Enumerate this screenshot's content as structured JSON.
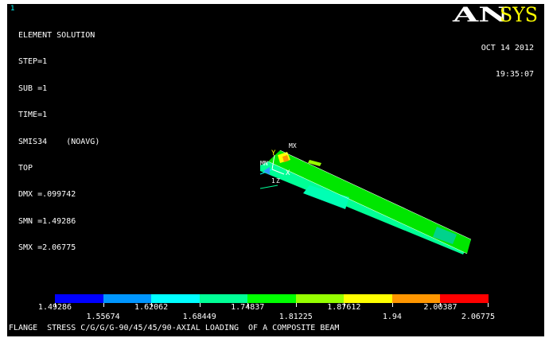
{
  "window_number": "1",
  "info": {
    "title": "ELEMENT SOLUTION",
    "lines": [
      "STEP=1",
      "SUB =1",
      "TIME=1",
      "SMIS34    (NOAVG)",
      "TOP",
      "DMX =.099742",
      "SMN =1.49286",
      "SMX =2.06775"
    ]
  },
  "date": "OCT 14 2012",
  "time": "19:35:07",
  "logo_text": "ANSYS",
  "triad": {
    "mx_label": "MX",
    "mn_label": "MN",
    "x_label": "X",
    "y_label": "Y",
    "z_label": "Z",
    "node_label": "1"
  },
  "legend": {
    "colors": [
      "#0000ff",
      "#0096ff",
      "#00ffff",
      "#00ff96",
      "#00ff00",
      "#96ff00",
      "#ffff00",
      "#ff9600",
      "#ff0000"
    ],
    "labels_top": [
      "1.49286",
      "1.62062",
      "1.74837",
      "1.87612",
      "2.00387"
    ],
    "labels_bottom": [
      "1.55674",
      "1.68449",
      "1.81225",
      "1.94",
      "2.06775"
    ]
  },
  "caption": "FLANGE  STRESS C/G/G/G-90/45/45/90-AXIAL LOADING  OF A COMPOSITE BEAM",
  "colors": {
    "background": "#000000",
    "text": "#ffffff",
    "window_number": "#00ffff",
    "beam_main": "#00ff00",
    "beam_side": "#00ff96",
    "max_spot": "#ffff00"
  }
}
